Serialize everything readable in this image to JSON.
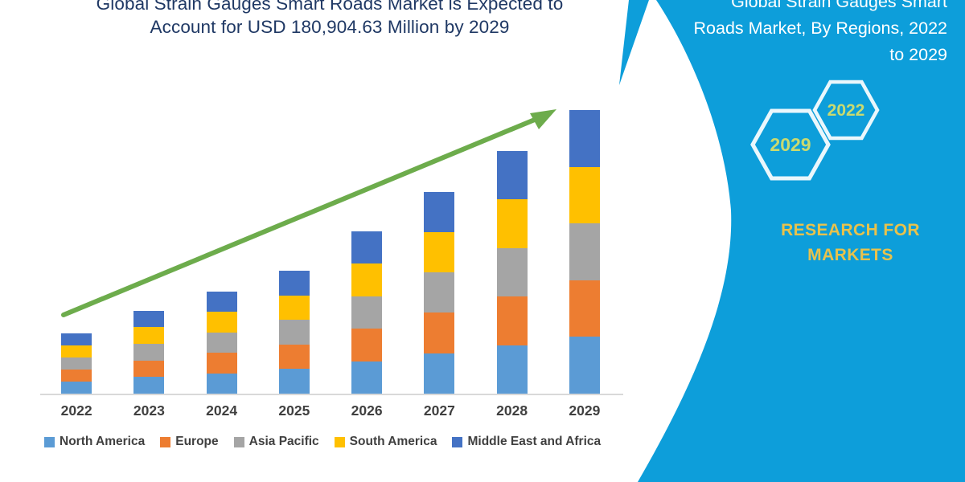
{
  "header": {
    "title_line1": "Global Strain Gauges Smart Roads Market is Expected to",
    "title_line2": "Account for USD 180,904.63 Million by 2029"
  },
  "chart_data": {
    "type": "bar",
    "stacked": true,
    "title": "Global Strain Gauges Smart Roads Market is Expected to Account for USD 180,904.63 Million by 2029",
    "unit": "USD Million",
    "categories": [
      "2022",
      "2023",
      "2024",
      "2025",
      "2026",
      "2027",
      "2028",
      "2029"
    ],
    "series": [
      {
        "name": "North America",
        "color": "#5B9BD5",
        "values": [
          7676,
          10592,
          13000,
          15658,
          20775,
          25790,
          31009,
          36180.9
        ]
      },
      {
        "name": "Europe",
        "color": "#ED7D31",
        "values": [
          7676,
          10592,
          13000,
          15658,
          20775,
          25790,
          31009,
          36180.9
        ]
      },
      {
        "name": "Asia Pacific",
        "color": "#A5A5A5",
        "values": [
          7676,
          10592,
          13000,
          15658,
          20775,
          25790,
          31009,
          36180.9
        ]
      },
      {
        "name": "South America",
        "color": "#FFC000",
        "values": [
          7676,
          10592,
          13000,
          15658,
          20775,
          25790,
          31009,
          36180.9
        ]
      },
      {
        "name": "Middle East and Africa",
        "color": "#4472C4",
        "values": [
          7676,
          10592,
          13000,
          15658,
          20775,
          25790,
          31009,
          36180.9
        ]
      }
    ],
    "totals_estimated": [
      38380,
      52960,
      65000,
      78290,
      103875,
      128950,
      155045,
      180904.63
    ],
    "xlabel": "",
    "ylabel": "",
    "ylim": [
      0,
      185000
    ],
    "y_axis_visible": false,
    "grid": false,
    "legend_position": "bottom",
    "trend_arrow": {
      "from_year": "2022",
      "to_year": "2029",
      "color": "#6DAC4C"
    }
  },
  "side_panel": {
    "background": "#0D9EDA",
    "title_lines": [
      "Global Strain Gauges Smart",
      "Roads Market, By Regions, 2022",
      "to 2029"
    ],
    "hexagons": [
      {
        "label": "2029"
      },
      {
        "label": "2022"
      }
    ],
    "brand_line1": "RESEARCH FOR",
    "brand_line2": "MARKETS"
  },
  "colors": {
    "panel_bg": "#0D9EDA",
    "title_text": "#1F3864",
    "axis_text": "#404040",
    "axis_line": "#D9D9D9",
    "arrow_green": "#6DAC4C",
    "hexagon_label": "#C9DA70",
    "hexagon_stroke": "#EAF7FC",
    "brand_gold": "#E8C24C",
    "panel_text": "#FFFFFF"
  }
}
